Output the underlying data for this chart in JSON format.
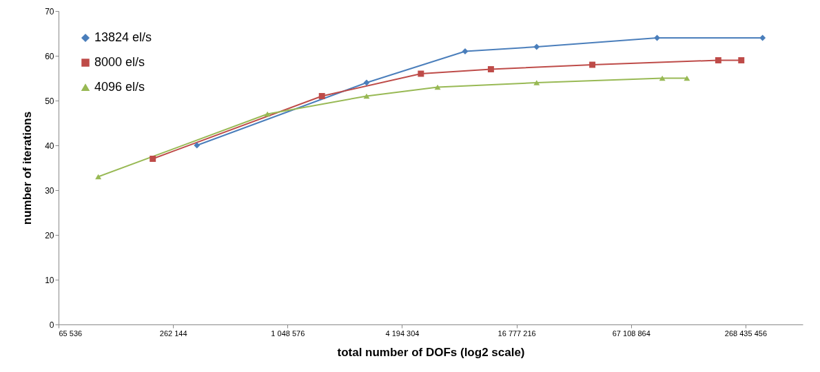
{
  "chart_data": {
    "type": "line",
    "xlabel": "total number of DOFs (log2 scale)",
    "ylabel": "number of iterations",
    "log": "x",
    "xlim": [
      65536,
      536870912
    ],
    "xticks": [
      {
        "value": 65536,
        "label": "65 536"
      },
      {
        "value": 262144,
        "label": "262 144"
      },
      {
        "value": 1048576,
        "label": "1 048 576"
      },
      {
        "value": 4194304,
        "label": "4 194 304"
      },
      {
        "value": 16777216,
        "label": "16 777 216"
      },
      {
        "value": 67108864,
        "label": "67 108 864"
      },
      {
        "value": 268435456,
        "label": "268 435 456"
      }
    ],
    "ylim": [
      0,
      70
    ],
    "yticks": [
      0,
      10,
      20,
      30,
      40,
      50,
      60,
      70
    ],
    "grid": false,
    "legend": "top left",
    "series": [
      {
        "name": "13824 el/s",
        "color": "#4a7ebb",
        "marker": "diamond",
        "x": [
          350000,
          2730000,
          9000000,
          21400000,
          92000000,
          330000000
        ],
        "values": [
          40,
          54,
          61,
          62,
          64,
          64
        ]
      },
      {
        "name": "8000 el/s",
        "color": "#be4b48",
        "marker": "square",
        "x": [
          205000,
          1590000,
          5270000,
          12300000,
          42000000,
          193000000,
          255000000
        ],
        "values": [
          37,
          51,
          56,
          57,
          58,
          59,
          59
        ]
      },
      {
        "name": "4096 el/s",
        "color": "#98b954",
        "marker": "triangle",
        "x": [
          106000,
          822000,
          2730000,
          6450000,
          21400000,
          98000000,
          132000000
        ],
        "values": [
          33,
          47,
          51,
          53,
          54,
          55,
          55
        ]
      }
    ]
  }
}
